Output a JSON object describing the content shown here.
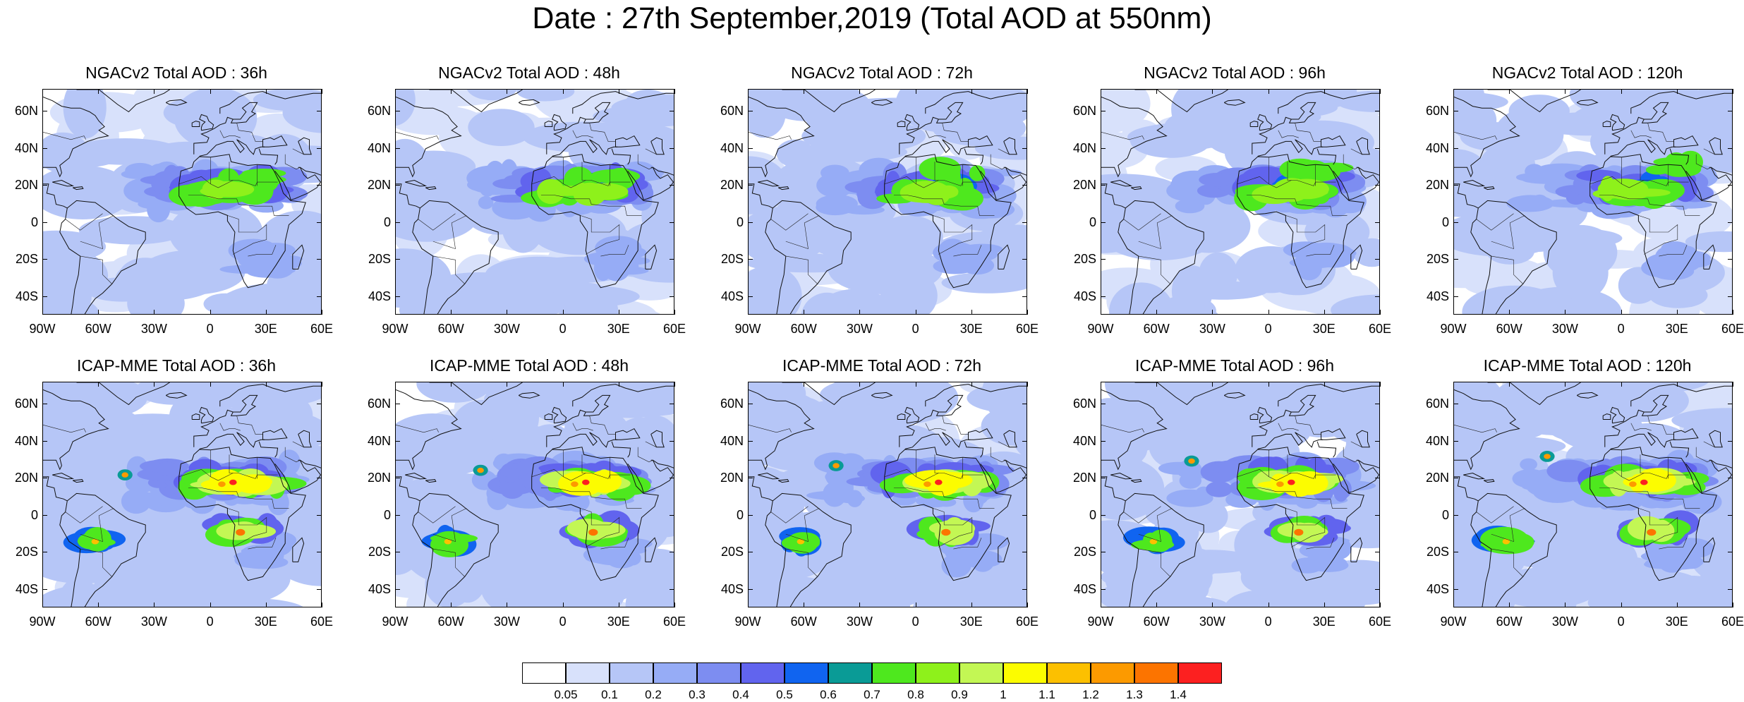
{
  "figure": {
    "title": "Date : 27th September,2019 (Total AOD at 550nm)"
  },
  "lat_ticks": [
    "60N",
    "40N",
    "20N",
    "0",
    "20S",
    "40S"
  ],
  "lat_values": [
    60,
    40,
    20,
    0,
    -20,
    -40
  ],
  "lon_ticks": [
    "90W",
    "60W",
    "30W",
    "0",
    "30E",
    "60E"
  ],
  "lon_values": [
    -90,
    -60,
    -30,
    0,
    30,
    60
  ],
  "map_extent": {
    "lon": [
      -90,
      60
    ],
    "lat": [
      -50,
      72
    ]
  },
  "panels": [
    {
      "title": "NGACv2 Total AOD : 36h",
      "model": "NGACv2",
      "lead": "36h"
    },
    {
      "title": "NGACv2 Total AOD : 48h",
      "model": "NGACv2",
      "lead": "48h"
    },
    {
      "title": "NGACv2 Total AOD : 72h",
      "model": "NGACv2",
      "lead": "72h"
    },
    {
      "title": "NGACv2 Total AOD : 96h",
      "model": "NGACv2",
      "lead": "96h"
    },
    {
      "title": "NGACv2 Total AOD : 120h",
      "model": "NGACv2",
      "lead": "120h"
    },
    {
      "title": "ICAP-MME Total AOD : 36h",
      "model": "ICAP-MME",
      "lead": "36h"
    },
    {
      "title": "ICAP-MME Total AOD : 48h",
      "model": "ICAP-MME",
      "lead": "48h"
    },
    {
      "title": "ICAP-MME Total AOD : 72h",
      "model": "ICAP-MME",
      "lead": "72h"
    },
    {
      "title": "ICAP-MME Total AOD : 96h",
      "model": "ICAP-MME",
      "lead": "96h"
    },
    {
      "title": "ICAP-MME Total AOD : 120h",
      "model": "ICAP-MME",
      "lead": "120h"
    }
  ],
  "colorbar": {
    "labels": [
      "0.05",
      "0.1",
      "0.2",
      "0.3",
      "0.4",
      "0.5",
      "0.6",
      "0.7",
      "0.8",
      "0.9",
      "1",
      "1.1",
      "1.2",
      "1.3",
      "1.4"
    ],
    "colors": [
      "#ffffff",
      "#d8e1fb",
      "#b6c6f7",
      "#96acf6",
      "#7d8df1",
      "#6164ee",
      "#1064f0",
      "#0a9b96",
      "#4ee81e",
      "#8ef11b",
      "#c3f754",
      "#fcfc00",
      "#fcc000",
      "#fc9a00",
      "#fc7400",
      "#fc2020"
    ]
  }
}
